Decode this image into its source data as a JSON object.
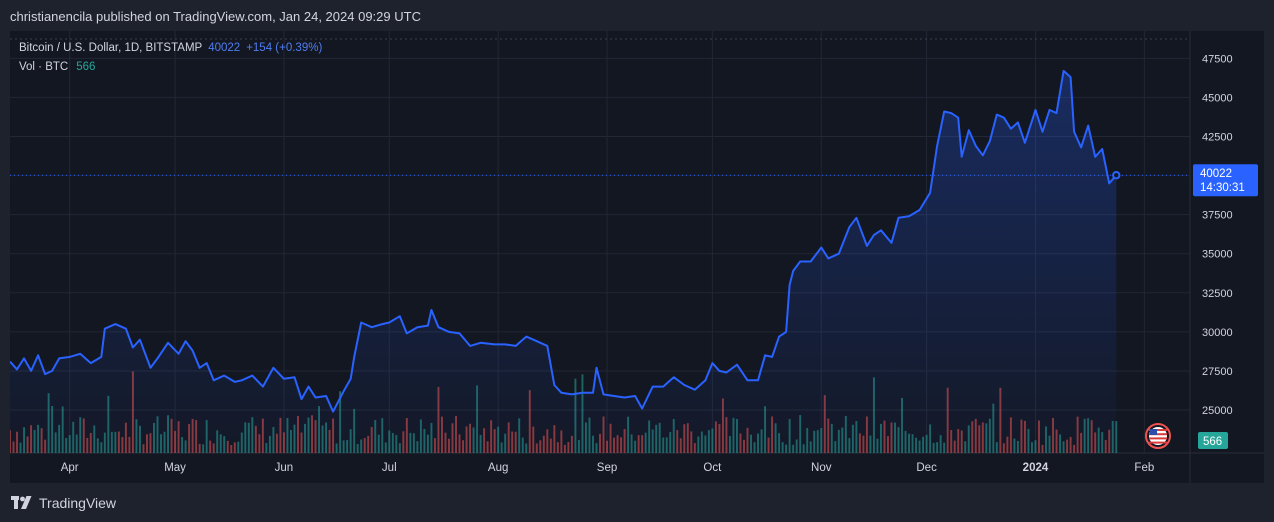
{
  "header": {
    "published_text": "christianencila published on TradingView.com, Jan 24, 2024 09:29 UTC"
  },
  "legend": {
    "symbol": "Bitcoin / U.S. Dollar, 1D, BITSTAMP",
    "last_price": "40022",
    "change": "+154 (+0.39%)",
    "volume_label": "Vol · BTC",
    "volume_value": "566"
  },
  "price_tag": {
    "price": "40022",
    "countdown": "14:30:31"
  },
  "volume_tag": "566",
  "footer": {
    "brand": "TradingView"
  },
  "colors": {
    "background": "#131722",
    "line": "#2962ff",
    "up_volume": "#26a69a",
    "down_volume": "#ef5350",
    "grid": "#232734",
    "axis_text": "#d1d4dc"
  },
  "chart_data": {
    "type": "area",
    "title": "Bitcoin / U.S. Dollar, 1D, BITSTAMP",
    "y_ticks": [
      25000,
      27500,
      30000,
      32500,
      35000,
      37500,
      40000,
      42500,
      45000,
      47500
    ],
    "y_tick_labels": [
      "25000",
      "27500",
      "30000",
      "32500",
      "35000",
      "37500",
      "40000",
      "42500",
      "45000",
      "47500"
    ],
    "ylim": [
      22250,
      49250
    ],
    "x_tick_labels": [
      "Apr",
      "May",
      "Jun",
      "Jul",
      "Aug",
      "Sep",
      "Oct",
      "Nov",
      "Dec",
      "2024",
      "Feb"
    ],
    "x_tick_dates": [
      "2023-04-01",
      "2023-05-01",
      "2023-06-01",
      "2023-07-01",
      "2023-08-01",
      "2023-09-01",
      "2023-10-01",
      "2023-11-01",
      "2023-12-01",
      "2024-01-01",
      "2024-02-01"
    ],
    "xlim": [
      "2023-03-15",
      "2024-02-14"
    ],
    "grid": true,
    "series": [
      {
        "name": "BTC/USD close",
        "points": [
          [
            "2023-03-15",
            28100
          ],
          [
            "2023-03-17",
            27600
          ],
          [
            "2023-03-19",
            28300
          ],
          [
            "2023-03-21",
            27500
          ],
          [
            "2023-03-23",
            28500
          ],
          [
            "2023-03-25",
            27300
          ],
          [
            "2023-03-27",
            27500
          ],
          [
            "2023-03-29",
            28300
          ],
          [
            "2023-04-01",
            28400
          ],
          [
            "2023-04-04",
            28600
          ],
          [
            "2023-04-07",
            28000
          ],
          [
            "2023-04-10",
            28400
          ],
          [
            "2023-04-11",
            30200
          ],
          [
            "2023-04-14",
            30500
          ],
          [
            "2023-04-17",
            30200
          ],
          [
            "2023-04-19",
            29000
          ],
          [
            "2023-04-21",
            29500
          ],
          [
            "2023-04-24",
            27700
          ],
          [
            "2023-04-26",
            28300
          ],
          [
            "2023-04-29",
            29300
          ],
          [
            "2023-05-02",
            28600
          ],
          [
            "2023-05-04",
            29400
          ],
          [
            "2023-05-06",
            28800
          ],
          [
            "2023-05-08",
            27700
          ],
          [
            "2023-05-10",
            28000
          ],
          [
            "2023-05-12",
            26900
          ],
          [
            "2023-05-15",
            27200
          ],
          [
            "2023-05-18",
            26800
          ],
          [
            "2023-05-20",
            26900
          ],
          [
            "2023-05-23",
            27200
          ],
          [
            "2023-05-26",
            26500
          ],
          [
            "2023-05-29",
            27700
          ],
          [
            "2023-06-01",
            27000
          ],
          [
            "2023-06-04",
            27100
          ],
          [
            "2023-06-06",
            25700
          ],
          [
            "2023-06-08",
            26500
          ],
          [
            "2023-06-10",
            25800
          ],
          [
            "2023-06-13",
            25900
          ],
          [
            "2023-06-15",
            24900
          ],
          [
            "2023-06-18",
            26200
          ],
          [
            "2023-06-20",
            27000
          ],
          [
            "2023-06-21",
            28400
          ],
          [
            "2023-06-23",
            30600
          ],
          [
            "2023-06-26",
            30300
          ],
          [
            "2023-06-29",
            30500
          ],
          [
            "2023-07-01",
            30600
          ],
          [
            "2023-07-04",
            31000
          ],
          [
            "2023-07-06",
            29900
          ],
          [
            "2023-07-09",
            30300
          ],
          [
            "2023-07-12",
            30400
          ],
          [
            "2023-07-13",
            31400
          ],
          [
            "2023-07-15",
            30300
          ],
          [
            "2023-07-18",
            30000
          ],
          [
            "2023-07-21",
            29900
          ],
          [
            "2023-07-24",
            29100
          ],
          [
            "2023-07-27",
            29300
          ],
          [
            "2023-07-31",
            29200
          ],
          [
            "2023-08-03",
            29200
          ],
          [
            "2023-08-06",
            29100
          ],
          [
            "2023-08-09",
            29700
          ],
          [
            "2023-08-12",
            29400
          ],
          [
            "2023-08-15",
            29100
          ],
          [
            "2023-08-17",
            26600
          ],
          [
            "2023-08-19",
            26100
          ],
          [
            "2023-08-22",
            26000
          ],
          [
            "2023-08-25",
            26100
          ],
          [
            "2023-08-28",
            26100
          ],
          [
            "2023-08-29",
            27700
          ],
          [
            "2023-08-31",
            26000
          ],
          [
            "2023-09-03",
            25900
          ],
          [
            "2023-09-06",
            25800
          ],
          [
            "2023-09-09",
            25900
          ],
          [
            "2023-09-11",
            25100
          ],
          [
            "2023-09-14",
            26500
          ],
          [
            "2023-09-17",
            26500
          ],
          [
            "2023-09-20",
            27100
          ],
          [
            "2023-09-23",
            26600
          ],
          [
            "2023-09-26",
            26300
          ],
          [
            "2023-09-29",
            26900
          ],
          [
            "2023-10-01",
            28000
          ],
          [
            "2023-10-03",
            27500
          ],
          [
            "2023-10-05",
            27400
          ],
          [
            "2023-10-08",
            27900
          ],
          [
            "2023-10-11",
            26900
          ],
          [
            "2023-10-14",
            26900
          ],
          [
            "2023-10-16",
            28500
          ],
          [
            "2023-10-18",
            28400
          ],
          [
            "2023-10-20",
            29700
          ],
          [
            "2023-10-22",
            30000
          ],
          [
            "2023-10-23",
            33000
          ],
          [
            "2023-10-24",
            33900
          ],
          [
            "2023-10-26",
            34500
          ],
          [
            "2023-10-29",
            34500
          ],
          [
            "2023-11-01",
            35400
          ],
          [
            "2023-11-03",
            34700
          ],
          [
            "2023-11-06",
            35000
          ],
          [
            "2023-11-09",
            36700
          ],
          [
            "2023-11-11",
            37300
          ],
          [
            "2023-11-14",
            35500
          ],
          [
            "2023-11-16",
            36200
          ],
          [
            "2023-11-18",
            36500
          ],
          [
            "2023-11-21",
            35700
          ],
          [
            "2023-11-23",
            37300
          ],
          [
            "2023-11-26",
            37400
          ],
          [
            "2023-11-29",
            37800
          ],
          [
            "2023-12-02",
            38900
          ],
          [
            "2023-12-04",
            41900
          ],
          [
            "2023-12-06",
            44100
          ],
          [
            "2023-12-08",
            44000
          ],
          [
            "2023-12-10",
            43700
          ],
          [
            "2023-12-11",
            41200
          ],
          [
            "2023-12-13",
            42900
          ],
          [
            "2023-12-15",
            41900
          ],
          [
            "2023-12-17",
            41300
          ],
          [
            "2023-12-19",
            42200
          ],
          [
            "2023-12-21",
            43900
          ],
          [
            "2023-12-23",
            43700
          ],
          [
            "2023-12-25",
            43000
          ],
          [
            "2023-12-27",
            43400
          ],
          [
            "2023-12-29",
            42100
          ],
          [
            "2024-01-01",
            44200
          ],
          [
            "2024-01-03",
            42800
          ],
          [
            "2024-01-05",
            44200
          ],
          [
            "2024-01-07",
            44000
          ],
          [
            "2024-01-09",
            46700
          ],
          [
            "2024-01-11",
            46300
          ],
          [
            "2024-01-12",
            42800
          ],
          [
            "2024-01-14",
            41800
          ],
          [
            "2024-01-16",
            43200
          ],
          [
            "2024-01-18",
            41200
          ],
          [
            "2024-01-20",
            41700
          ],
          [
            "2024-01-22",
            39500
          ],
          [
            "2024-01-24",
            40022
          ]
        ]
      }
    ],
    "volume": {
      "name": "Vol · BTC",
      "last": 566
    }
  }
}
